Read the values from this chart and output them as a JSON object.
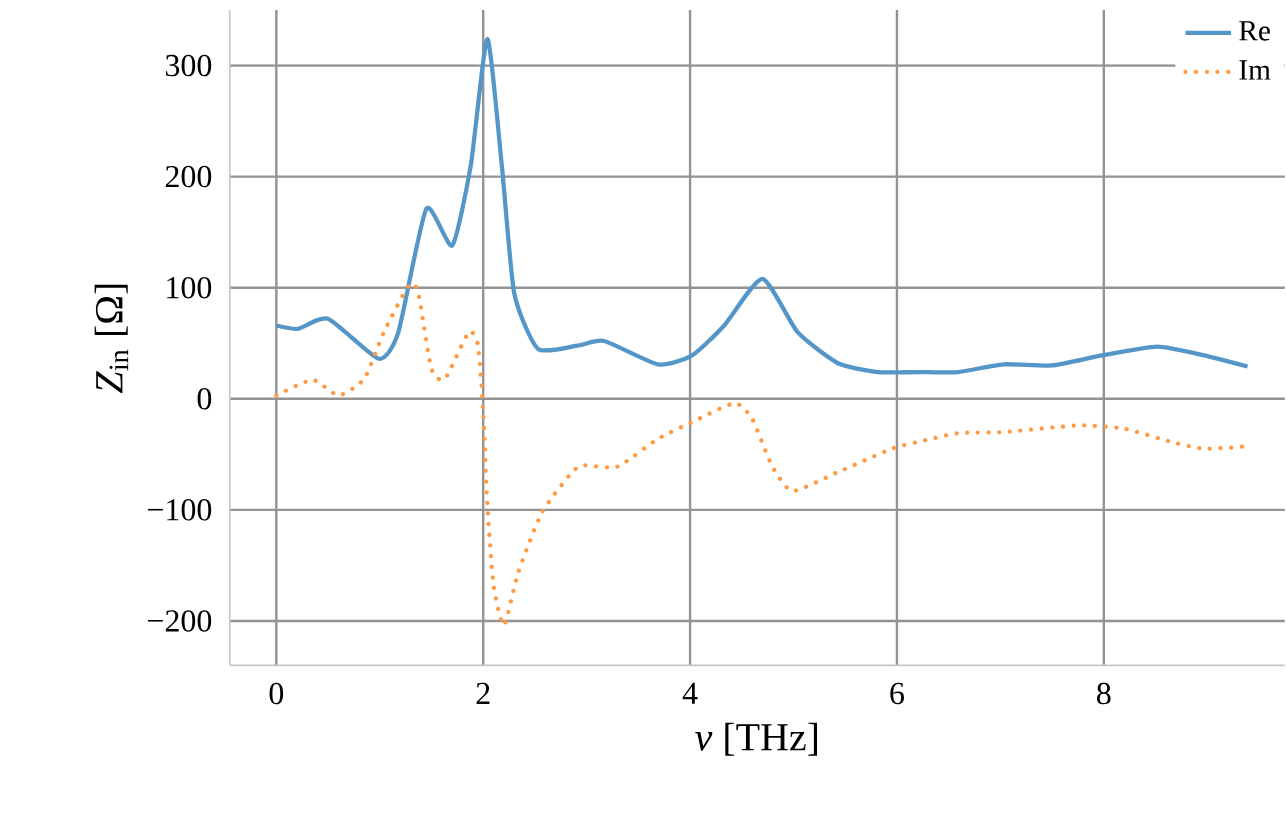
{
  "chart_data": {
    "type": "line",
    "xlabel": "*ν* [THz]",
    "ylabel": "*Z*$_{in}$ [Ω]",
    "xlim": [
      -0.45,
      9.75
    ],
    "ylim": [
      -240,
      350
    ],
    "xticks": [
      0,
      2,
      4,
      6,
      8
    ],
    "yticks": [
      {
        "value": -200,
        "label": "−200"
      },
      {
        "value": -100,
        "label": "−100"
      },
      0,
      100,
      200,
      300
    ],
    "grid": true,
    "legend": "top right",
    "series": [
      {
        "name": "Re",
        "color": "#5496c8",
        "line_style": "solid",
        "x": [
          0,
          0.21,
          0.5,
          0.99,
          1.18,
          1.45,
          1.7,
          1.88,
          2.04,
          2.18,
          2.3,
          2.53,
          2.92,
          3.17,
          3.69,
          4.02,
          4.33,
          4.7,
          5.04,
          5.43,
          5.82,
          6.2,
          6.59,
          7.03,
          7.5,
          7.98,
          8.52,
          8.97,
          9.39
        ],
        "values": [
          66,
          63,
          72,
          36,
          60,
          171,
          138,
          210,
          324,
          210,
          95,
          45,
          48,
          52,
          31,
          39,
          66,
          108,
          60,
          32,
          24,
          24,
          24,
          31,
          30,
          39,
          47,
          39,
          29
        ]
      },
      {
        "name": "Im",
        "color": "#ff9a42",
        "line_style": "dotted",
        "x": [
          0,
          0.35,
          0.6,
          0.85,
          1.04,
          1.28,
          1.37,
          1.5,
          1.63,
          1.86,
          1.95,
          2.0,
          2.04,
          2.1,
          2.2,
          2.34,
          2.57,
          2.86,
          2.98,
          3.3,
          3.69,
          4.02,
          4.43,
          4.6,
          4.79,
          4.99,
          5.43,
          5.95,
          6.2,
          6.59,
          7.03,
          7.75,
          8.2,
          8.66,
          8.97,
          9.36
        ],
        "values": [
          3,
          17,
          3,
          18,
          60,
          102,
          96,
          27,
          18,
          60,
          48,
          -12,
          -95,
          -168,
          -204,
          -156,
          -102,
          -66,
          -60,
          -61,
          -36,
          -21,
          -4,
          -18,
          -60,
          -83,
          -66,
          -45,
          -39,
          -31,
          -30,
          -24,
          -27,
          -39,
          -45,
          -43
        ]
      }
    ]
  }
}
